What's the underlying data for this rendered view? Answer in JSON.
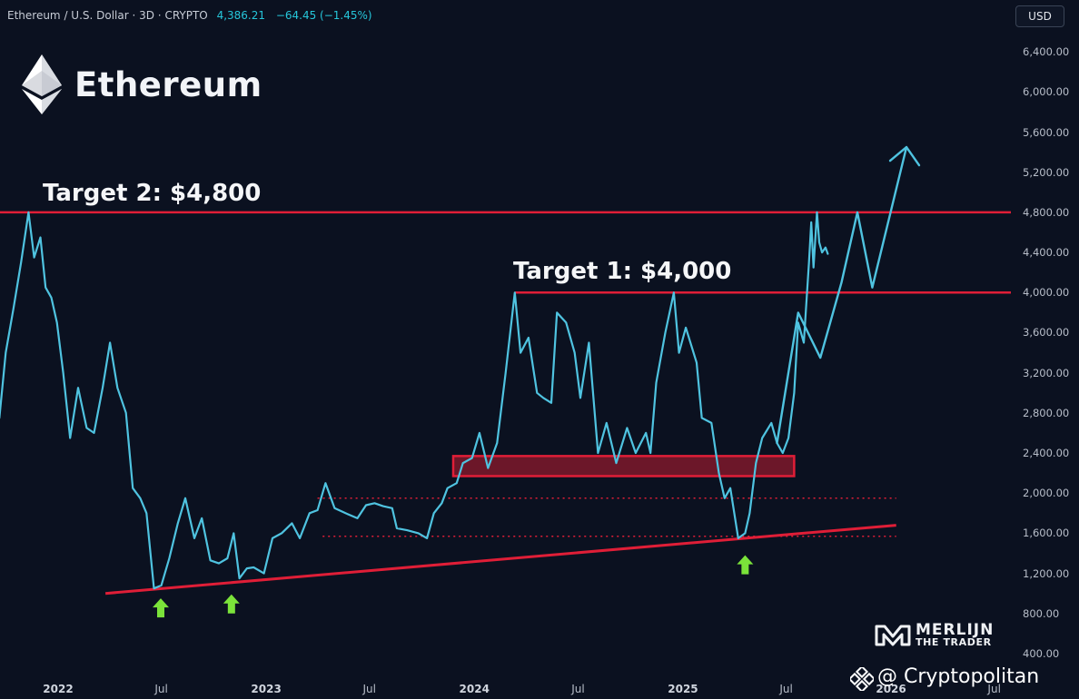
{
  "header": {
    "symbol_line": "Ethereum / U.S. Dollar · 3D · CRYPTO",
    "price": "4,386.21",
    "change": "−64.45 (−1.45%)"
  },
  "currency_button": "USD",
  "brand_title": "Ethereum",
  "watermarks": {
    "merlijn_line1": "MERLIJN",
    "merlijn_line2": "THE TRADER",
    "cryptopolitan": "@ Cryptopolitan"
  },
  "colors": {
    "background": "#0b1120",
    "price_line": "#4fc3e0",
    "target_line": "#e01e37",
    "up_arrow": "#7be33a"
  },
  "icons": [
    "ethereum-logo-icon",
    "up-arrow-icon",
    "merlijn-logo-icon",
    "cryptopolitan-logo-icon"
  ],
  "chart_data": {
    "type": "line",
    "title": "",
    "xlabel": "",
    "ylabel": "",
    "y_unit": "USD",
    "ylim": [
      400,
      6400
    ],
    "y_ticks": [
      "6,400.00",
      "6,000.00",
      "5,600.00",
      "5,200.00",
      "4,800.00",
      "4,400.00",
      "4,000.00",
      "3,600.00",
      "3,200.00",
      "2,800.00",
      "2,400.00",
      "2,000.00",
      "1,600.00",
      "1,200.00",
      "800.00",
      "400.00"
    ],
    "x_ticks": [
      {
        "date": "2022-01-01",
        "label": "2022",
        "bold": true
      },
      {
        "date": "2022-07-01",
        "label": "Jul",
        "bold": false
      },
      {
        "date": "2023-01-01",
        "label": "2023",
        "bold": true
      },
      {
        "date": "2023-07-01",
        "label": "Jul",
        "bold": false
      },
      {
        "date": "2024-01-01",
        "label": "2024",
        "bold": true
      },
      {
        "date": "2024-07-01",
        "label": "Jul",
        "bold": false
      },
      {
        "date": "2025-01-01",
        "label": "2025",
        "bold": true
      },
      {
        "date": "2025-07-01",
        "label": "Jul",
        "bold": false
      },
      {
        "date": "2026-01-01",
        "label": "2026",
        "bold": true
      },
      {
        "date": "2026-07-01",
        "label": "Jul",
        "bold": false
      }
    ],
    "series": [
      {
        "values": [
          [
            "2021-09-20",
            2750
          ],
          [
            "2021-10-01",
            3400
          ],
          [
            "2021-10-15",
            3850
          ],
          [
            "2021-10-28",
            4300
          ],
          [
            "2021-11-10",
            4800
          ],
          [
            "2021-11-20",
            4350
          ],
          [
            "2021-12-01",
            4550
          ],
          [
            "2021-12-10",
            4050
          ],
          [
            "2021-12-20",
            3950
          ],
          [
            "2021-12-30",
            3700
          ],
          [
            "2022-01-10",
            3200
          ],
          [
            "2022-01-22",
            2550
          ],
          [
            "2022-02-05",
            3050
          ],
          [
            "2022-02-20",
            2650
          ],
          [
            "2022-03-05",
            2600
          ],
          [
            "2022-03-20",
            3050
          ],
          [
            "2022-04-02",
            3500
          ],
          [
            "2022-04-15",
            3050
          ],
          [
            "2022-04-30",
            2800
          ],
          [
            "2022-05-12",
            2050
          ],
          [
            "2022-05-25",
            1950
          ],
          [
            "2022-06-05",
            1800
          ],
          [
            "2022-06-18",
            1050
          ],
          [
            "2022-07-01",
            1080
          ],
          [
            "2022-07-15",
            1350
          ],
          [
            "2022-07-30",
            1700
          ],
          [
            "2022-08-12",
            1950
          ],
          [
            "2022-08-28",
            1550
          ],
          [
            "2022-09-10",
            1750
          ],
          [
            "2022-09-25",
            1330
          ],
          [
            "2022-10-10",
            1300
          ],
          [
            "2022-10-25",
            1350
          ],
          [
            "2022-11-05",
            1600
          ],
          [
            "2022-11-15",
            1150
          ],
          [
            "2022-11-28",
            1250
          ],
          [
            "2022-12-10",
            1260
          ],
          [
            "2022-12-28",
            1200
          ],
          [
            "2023-01-12",
            1550
          ],
          [
            "2023-01-28",
            1600
          ],
          [
            "2023-02-15",
            1700
          ],
          [
            "2023-03-01",
            1550
          ],
          [
            "2023-03-18",
            1800
          ],
          [
            "2023-04-01",
            1830
          ],
          [
            "2023-04-15",
            2100
          ],
          [
            "2023-05-01",
            1850
          ],
          [
            "2023-05-20",
            1800
          ],
          [
            "2023-06-10",
            1750
          ],
          [
            "2023-06-25",
            1880
          ],
          [
            "2023-07-10",
            1900
          ],
          [
            "2023-07-25",
            1870
          ],
          [
            "2023-08-10",
            1850
          ],
          [
            "2023-08-18",
            1650
          ],
          [
            "2023-09-05",
            1630
          ],
          [
            "2023-09-25",
            1600
          ],
          [
            "2023-10-10",
            1550
          ],
          [
            "2023-10-22",
            1800
          ],
          [
            "2023-11-05",
            1900
          ],
          [
            "2023-11-15",
            2050
          ],
          [
            "2023-12-01",
            2100
          ],
          [
            "2023-12-12",
            2300
          ],
          [
            "2023-12-28",
            2350
          ],
          [
            "2024-01-10",
            2600
          ],
          [
            "2024-01-25",
            2250
          ],
          [
            "2024-02-10",
            2500
          ],
          [
            "2024-02-25",
            3200
          ],
          [
            "2024-03-12",
            4000
          ],
          [
            "2024-03-22",
            3400
          ],
          [
            "2024-04-05",
            3550
          ],
          [
            "2024-04-20",
            3000
          ],
          [
            "2024-05-01",
            2950
          ],
          [
            "2024-05-15",
            2900
          ],
          [
            "2024-05-25",
            3800
          ],
          [
            "2024-06-10",
            3700
          ],
          [
            "2024-06-25",
            3400
          ],
          [
            "2024-07-05",
            2950
          ],
          [
            "2024-07-20",
            3500
          ],
          [
            "2024-08-05",
            2400
          ],
          [
            "2024-08-20",
            2700
          ],
          [
            "2024-09-06",
            2300
          ],
          [
            "2024-09-25",
            2650
          ],
          [
            "2024-10-10",
            2400
          ],
          [
            "2024-10-28",
            2600
          ],
          [
            "2024-11-05",
            2400
          ],
          [
            "2024-11-15",
            3100
          ],
          [
            "2024-12-01",
            3600
          ],
          [
            "2024-12-16",
            4000
          ],
          [
            "2024-12-25",
            3400
          ],
          [
            "2025-01-06",
            3650
          ],
          [
            "2025-01-25",
            3300
          ],
          [
            "2025-02-03",
            2750
          ],
          [
            "2025-02-20",
            2700
          ],
          [
            "2025-03-05",
            2200
          ],
          [
            "2025-03-15",
            1950
          ],
          [
            "2025-03-25",
            2050
          ],
          [
            "2025-04-08",
            1550
          ],
          [
            "2025-04-20",
            1600
          ],
          [
            "2025-04-28",
            1800
          ],
          [
            "2025-05-09",
            2300
          ],
          [
            "2025-05-20",
            2550
          ],
          [
            "2025-06-05",
            2700
          ],
          [
            "2025-06-15",
            2500
          ],
          [
            "2025-06-25",
            2400
          ],
          [
            "2025-07-05",
            2550
          ],
          [
            "2025-07-15",
            3000
          ],
          [
            "2025-07-22",
            3700
          ],
          [
            "2025-08-01",
            3500
          ],
          [
            "2025-08-10",
            4300
          ],
          [
            "2025-08-14",
            4700
          ],
          [
            "2025-08-18",
            4250
          ],
          [
            "2025-08-24",
            4800
          ],
          [
            "2025-08-28",
            4500
          ],
          [
            "2025-09-02",
            4400
          ],
          [
            "2025-09-08",
            4450
          ],
          [
            "2025-09-12",
            4386
          ]
        ]
      },
      {
        "name": "projection",
        "values": [
          [
            "2025-06-15",
            2500
          ],
          [
            "2025-07-22",
            3800
          ],
          [
            "2025-08-30",
            3350
          ],
          [
            "2025-10-06",
            4100
          ],
          [
            "2025-11-03",
            4800
          ],
          [
            "2025-11-29",
            4050
          ],
          [
            "2026-01-28",
            5450
          ]
        ]
      }
    ],
    "annotations": {
      "target_1": {
        "label": "Target 1: $4,000",
        "value": 4000,
        "from": "2024-03-12"
      },
      "target_2": {
        "label": "Target 2: $4,800",
        "value": 4800,
        "from": "2021-09-20"
      },
      "support_zone": {
        "from": "2023-11-25",
        "to": "2025-07-15",
        "low": 2170,
        "high": 2370
      },
      "dotted_upper": {
        "from": "2023-04-01",
        "to": "2026-01-10",
        "value": 1950
      },
      "dotted_lower": {
        "from": "2023-04-10",
        "to": "2026-01-10",
        "value": 1570
      },
      "trendline": {
        "start": [
          "2022-03-25",
          1000
        ],
        "end": [
          "2026-01-10",
          1680
        ]
      },
      "up_arrows": [
        [
          "2022-06-30",
          860
        ],
        [
          "2022-11-01",
          900
        ],
        [
          "2025-04-20",
          1290
        ]
      ]
    }
  }
}
